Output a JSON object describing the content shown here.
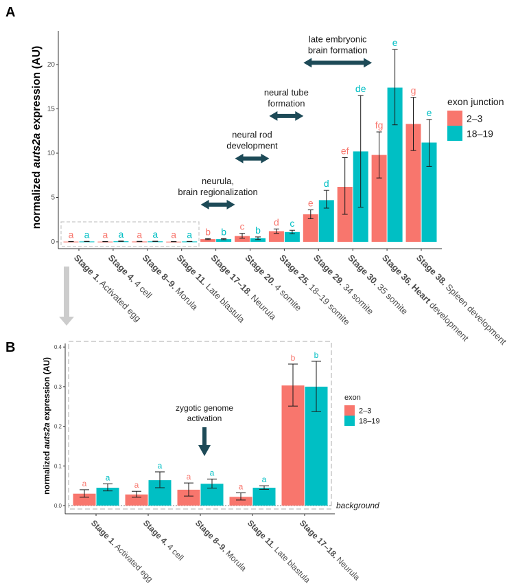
{
  "colors": {
    "series_2_3": "#f8766d",
    "series_18_19": "#00bfc4",
    "annotation_arrow": "#1d4a57",
    "axis": "#333333",
    "dashed_box": "#c8c8c8",
    "down_arrow": "#cccccc"
  },
  "chart_data": [
    {
      "panel": "A",
      "type": "bar",
      "title": "",
      "ylabel_prefix": "normalized ",
      "ylabel_italic": "auts2a",
      "ylabel_suffix": " expression (AU)",
      "xlabel": "",
      "ylim": [
        0,
        23.5
      ],
      "yticks": [
        0,
        5,
        10,
        15,
        20
      ],
      "grid": false,
      "legend_title": "exon junction",
      "legend_position": "right",
      "categories": [
        {
          "bold": "Stage 1.",
          "rest": " Activated egg"
        },
        {
          "bold": "Stage 4.",
          "rest": " 4 cell"
        },
        {
          "bold": "Stage 8–9.",
          "rest": " Morula"
        },
        {
          "bold": "Stage 11.",
          "rest": " Late blastula"
        },
        {
          "bold": "Stage 17–18.",
          "rest": " Neurula"
        },
        {
          "bold": "Stage 20.",
          "rest": " 4 somite"
        },
        {
          "bold": "Stage 25.",
          "rest": " 18–19 somite"
        },
        {
          "bold": "Stage 29.",
          "rest": " 34 somite"
        },
        {
          "bold": "Stage 30.",
          "rest": " 35 somite"
        },
        {
          "bold": "Stage 36. Heart",
          "rest": " development"
        },
        {
          "bold": "Stage 38.",
          "rest": " Spleen development"
        }
      ],
      "series": [
        {
          "name": "2–3",
          "values": [
            0.03,
            0.028,
            0.04,
            0.022,
            0.3,
            0.65,
            1.2,
            3.1,
            6.2,
            9.8,
            13.3
          ],
          "err_low": [
            0.02,
            0.021,
            0.024,
            0.014,
            0.25,
            0.4,
            0.95,
            2.6,
            3.1,
            7.2,
            10.3
          ],
          "err_high": [
            0.04,
            0.036,
            0.057,
            0.032,
            0.36,
            0.95,
            1.45,
            3.6,
            9.5,
            12.4,
            16.3
          ],
          "letters": [
            "a",
            "a",
            "a",
            "a",
            "b",
            "c",
            "d",
            "e",
            "ef",
            "fg",
            "g"
          ]
        },
        {
          "name": "18–19",
          "values": [
            0.045,
            0.064,
            0.055,
            0.045,
            0.3,
            0.4,
            1.1,
            4.7,
            10.2,
            17.4,
            11.2
          ],
          "err_low": [
            0.037,
            0.045,
            0.044,
            0.041,
            0.24,
            0.25,
            0.9,
            3.8,
            3.9,
            13.2,
            8.5
          ],
          "err_high": [
            0.055,
            0.085,
            0.067,
            0.05,
            0.36,
            0.55,
            1.3,
            5.8,
            16.5,
            21.7,
            13.8
          ],
          "letters": [
            "a",
            "a",
            "a",
            "a",
            "b",
            "b",
            "c",
            "d",
            "de",
            "e",
            "e"
          ]
        }
      ],
      "annotations": [
        {
          "lines": [
            "neurula,",
            "brain regionalization"
          ],
          "from_group": 4,
          "to_group": 5,
          "y": 4.2
        },
        {
          "lines": [
            "neural rod",
            "development"
          ],
          "from_group": 5,
          "to_group": 6,
          "y": 9.4
        },
        {
          "lines": [
            "neural tube",
            "formation"
          ],
          "from_group": 6,
          "to_group": 7,
          "y": 14.2
        },
        {
          "lines": [
            "late embryonic",
            "brain formation"
          ],
          "from_group": 7,
          "to_group": 9,
          "y": 20.2
        }
      ]
    },
    {
      "panel": "B",
      "type": "bar",
      "title": "",
      "ylabel_prefix": "normalized ",
      "ylabel_italic": "auts2a",
      "ylabel_suffix": " expression (AU)",
      "xlabel": "",
      "ylim": [
        -0.01,
        0.4
      ],
      "yticks": [
        0.0,
        0.1,
        0.2,
        0.3,
        0.4
      ],
      "grid": false,
      "legend_title": "exon",
      "legend_position": "right",
      "background_label": "background",
      "background_level": 0.0,
      "categories": [
        {
          "bold": "Stage 1.",
          "rest": " Activated egg"
        },
        {
          "bold": "Stage 4.",
          "rest": " 4 cell"
        },
        {
          "bold": "Stage 8–9.",
          "rest": " Morula"
        },
        {
          "bold": "Stage 11.",
          "rest": " Late blastula"
        },
        {
          "bold": "Stage 17–18.",
          "rest": " Neurula"
        }
      ],
      "series": [
        {
          "name": "2–3",
          "values": [
            0.03,
            0.028,
            0.04,
            0.022,
            0.303
          ],
          "err_low": [
            0.021,
            0.021,
            0.024,
            0.014,
            0.251
          ],
          "err_high": [
            0.04,
            0.036,
            0.057,
            0.032,
            0.357
          ],
          "letters": [
            "a",
            "a",
            "a",
            "a",
            "b"
          ]
        },
        {
          "name": "18–19",
          "values": [
            0.045,
            0.064,
            0.055,
            0.045,
            0.3
          ],
          "err_low": [
            0.037,
            0.045,
            0.044,
            0.041,
            0.237
          ],
          "err_high": [
            0.055,
            0.085,
            0.067,
            0.05,
            0.364
          ],
          "letters": [
            "a",
            "a",
            "a",
            "a",
            "b"
          ]
        }
      ],
      "annotations": [
        {
          "lines": [
            "zygotic genome",
            "activation"
          ],
          "at_group": 2.5,
          "arrow": "down"
        }
      ]
    }
  ]
}
